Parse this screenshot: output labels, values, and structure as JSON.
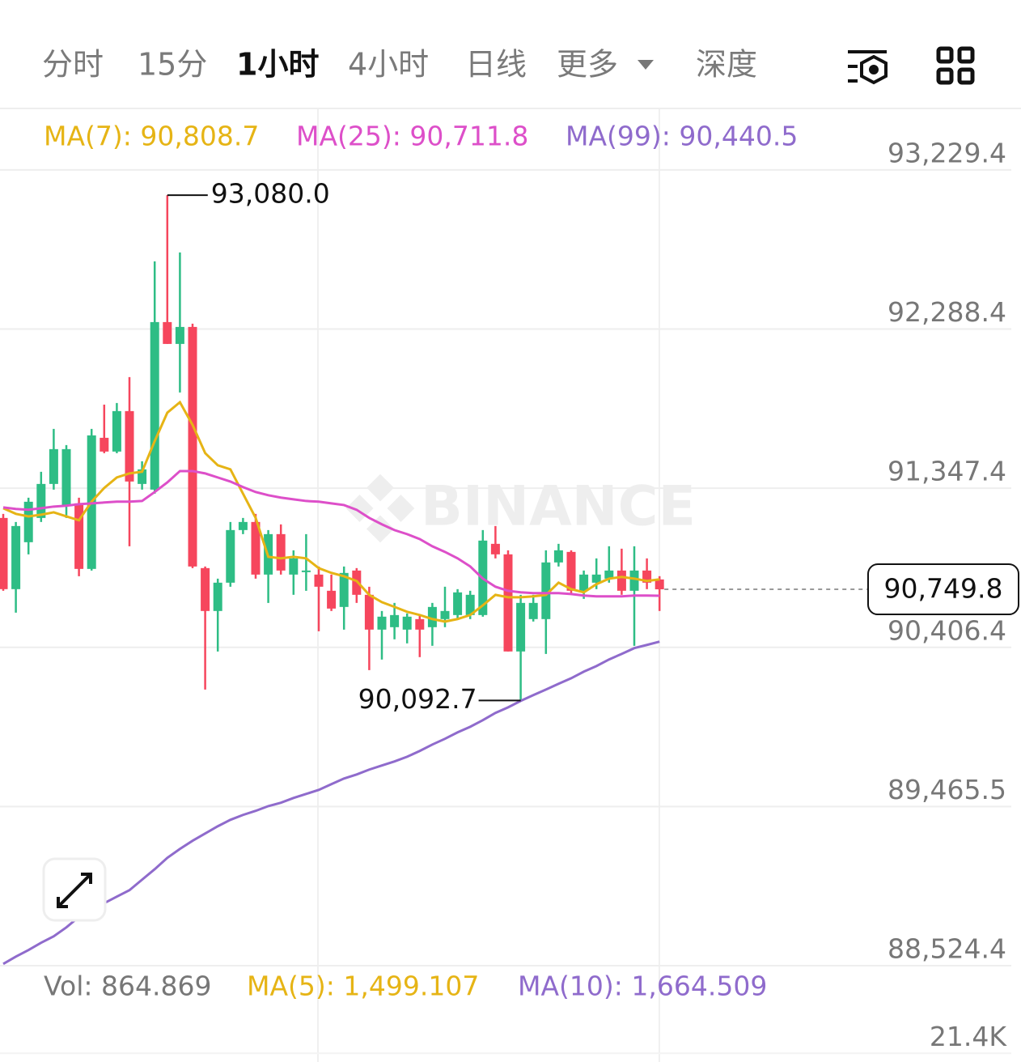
{
  "tabs": [
    "分时",
    "15分",
    "1小时",
    "4小时",
    "日线",
    "更多",
    "深度"
  ],
  "chart_data": {
    "type": "candlestick",
    "watermark": "BINANCE",
    "ylim": [
      88515,
      93588
    ],
    "yticks": [
      {
        "value": 93229.4,
        "label": "93,229.4"
      },
      {
        "value": 92288.4,
        "label": "92,288.4"
      },
      {
        "value": 91347.4,
        "label": "91,347.4"
      },
      {
        "value": 90406.4,
        "label": "90,406.4"
      },
      {
        "value": 89465.5,
        "label": "89,465.5"
      },
      {
        "value": 88524.4,
        "label": "88,524.4"
      }
    ],
    "grid": true,
    "up_color": "#2ebd85",
    "down_color": "#f6465d",
    "open": [
      91171.8,
      90750.8,
      91028.3,
      91171.8,
      91372.8,
      91243.6,
      91258.0,
      90870.4,
      91645.6,
      91564.2,
      91803.5,
      91372.8,
      91339.3,
      92329.8,
      92200.6,
      92301.1,
      90875.2,
      90621.6,
      90789.0,
      91100.1,
      91147.9,
      90836.9,
      91076.1,
      90836.9,
      90851.3,
      90836.9,
      90741.2,
      90645.5,
      90860.8,
      90717.3,
      90511.5,
      90525.9,
      90511.5,
      90573.7,
      90525.9,
      90573.7,
      90597.6,
      90597.6,
      90597.6,
      91018.7,
      90956.5,
      90382.3,
      90573.7,
      90573.7,
      90908.7,
      90970.9,
      90741.2,
      90789.0,
      90813.0,
      90860.8,
      90741.2,
      90860.8,
      90808.2
    ],
    "high": [
      91195.8,
      91147.9,
      91291.5,
      91444.6,
      91698.2,
      91602.5,
      91291.5,
      91698.2,
      91841.8,
      91851.3,
      92004.4,
      91506.8,
      92688.7,
      93080.0,
      92741.3,
      92320.2,
      90884.7,
      90813.0,
      91147.9,
      91171.8,
      91195.8,
      91100.1,
      91133.6,
      90980.4,
      91076.1,
      90884.7,
      90836.9,
      90884.7,
      90875.2,
      90765.1,
      90621.6,
      90669.4,
      90607.2,
      90597.6,
      90669.4,
      90765.1,
      90750.8,
      90741.2,
      91100.1,
      91124.0,
      90980.4,
      90717.3,
      90717.3,
      90980.4,
      91018.7,
      90980.4,
      90860.8,
      90932.6,
      91004.4,
      90990.0,
      91004.4,
      90932.6,
      90827.4
    ],
    "low": [
      90741.2,
      90612.0,
      90956.5,
      91147.9,
      91339.3,
      91171.8,
      90827.4,
      90860.8,
      91554.7,
      91554.7,
      91004.4,
      91339.3,
      91315.4,
      92200.6,
      91913.5,
      90875.2,
      90157.4,
      90382.3,
      90765.1,
      91076.1,
      90813.0,
      90669.4,
      90836.9,
      90717.3,
      90741.2,
      90501.9,
      90621.6,
      90511.5,
      90669.4,
      90272.3,
      90334.5,
      90454.1,
      90430.2,
      90348.8,
      90415.8,
      90525.9,
      90573.7,
      90573.7,
      90588.1,
      90932.6,
      90382.3,
      90092.7,
      90559.4,
      90368.0,
      90884.7,
      90717.3,
      90693.3,
      90750.8,
      90789.0,
      90717.3,
      90415.8,
      90750.8,
      90621.6
    ],
    "close": [
      90750.8,
      91124.0,
      91267.5,
      91372.8,
      91578.6,
      91578.6,
      90870.4,
      91659.9,
      91564.2,
      91803.5,
      91387.2,
      91458.9,
      92329.8,
      92200.6,
      92301.1,
      90884.7,
      90621.6,
      90789.0,
      91100.1,
      91147.9,
      90836.9,
      91076.1,
      90860.8,
      90932.6,
      90860.8,
      90765.1,
      90635.9,
      90846.5,
      90717.3,
      90511.5,
      90588.1,
      90597.6,
      90588.1,
      90511.5,
      90645.5,
      90621.6,
      90731.6,
      90717.3,
      91037.9,
      90956.5,
      90382.3,
      90669.4,
      90669.4,
      90908.7,
      90980.4,
      90741.2,
      90836.9,
      90836.9,
      90860.8,
      90741.2,
      90860.8,
      90789.0,
      90749.8
    ],
    "max_label": "93,080.0",
    "min_label": "90,092.7",
    "last_label": "90,749.8",
    "series": [
      {
        "name": "MA(7): 90,808.7",
        "color": "#e6b415",
        "values": [
          91229,
          91196,
          91181,
          91191,
          91205,
          91181,
          91158,
          91268,
          91349,
          91411,
          91435,
          91445,
          91626,
          91794,
          91856,
          91722,
          91555,
          91483,
          91459,
          91315,
          91172,
          90942,
          90933,
          90942,
          90933,
          90875,
          90847,
          90827,
          90799,
          90717,
          90674,
          90646,
          90617,
          90598,
          90574,
          90559,
          90574,
          90598,
          90655,
          90717,
          90703,
          90703,
          90708,
          90717,
          90789,
          90751,
          90732,
          90780,
          90813,
          90823,
          90813,
          90799,
          90808.7
        ]
      },
      {
        "name": "MA(25): 90,711.8",
        "color": "#dd4fc9",
        "values": [
          91234,
          91225,
          91220,
          91229,
          91239,
          91244,
          91253,
          91258,
          91263,
          91268,
          91268,
          91272,
          91325,
          91382,
          91449,
          91449,
          91435,
          91411,
          91387,
          91354,
          91325,
          91306,
          91292,
          91282,
          91272,
          91268,
          91258,
          91248,
          91220,
          91172,
          91134,
          91100,
          91076,
          91047,
          91004,
          90971,
          90933,
          90885,
          90813,
          90765,
          90741,
          90732,
          90727,
          90727,
          90727,
          90722,
          90713,
          90708,
          90708,
          90708,
          90713,
          90713,
          90711.8
        ]
      },
      {
        "name": "MA(99): 90,440.5",
        "color": "#8f6bcc",
        "values": [
          88535,
          88578,
          88617,
          88660,
          88698,
          88751,
          88813,
          88861,
          88894,
          88933,
          88971,
          89033,
          89095,
          89162,
          89215,
          89263,
          89306,
          89349,
          89387,
          89416,
          89440,
          89468,
          89488,
          89516,
          89540,
          89564,
          89598,
          89631,
          89655,
          89684,
          89708,
          89732,
          89760,
          89794,
          89832,
          89866,
          89904,
          89937,
          89976,
          90019,
          90052,
          90090,
          90124,
          90157,
          90191,
          90224,
          90263,
          90296,
          90335,
          90368,
          90402,
          90421,
          90440.5
        ]
      }
    ],
    "volume": {
      "legend": [
        {
          "text": "Vol: 864.869",
          "color": "#777777"
        },
        {
          "text": "MA(5): 1,499.107",
          "color": "#e6b415"
        },
        {
          "text": "MA(10): 1,664.509",
          "color": "#8f6bcc"
        }
      ],
      "ylim": [
        21000,
        23500
      ],
      "yticks": [
        {
          "value": 21400,
          "label": "21.4K"
        }
      ]
    }
  }
}
